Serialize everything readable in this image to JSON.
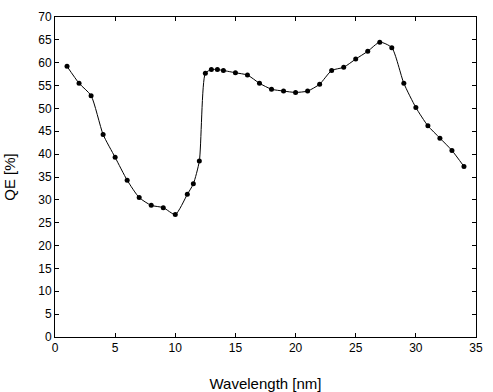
{
  "chart_data": {
    "type": "line",
    "x_label": "Wavelength [nm]",
    "y_label": "QE [%]",
    "x": [
      1,
      2,
      3,
      4,
      5,
      6,
      7,
      8,
      9,
      10,
      11,
      11.5,
      12,
      12.5,
      13,
      13.5,
      14,
      15,
      16,
      17,
      18,
      19,
      20,
      21,
      22,
      23,
      24,
      25,
      26,
      27,
      28,
      29,
      30,
      31,
      32,
      33,
      34
    ],
    "values": [
      59.2,
      55.5,
      52.8,
      44.3,
      39.3,
      34.3,
      30.5,
      28.8,
      28.3,
      26.8,
      31.2,
      33.5,
      38.5,
      57.7,
      58.5,
      58.5,
      58.3,
      57.8,
      57.3,
      55.5,
      54.2,
      53.8,
      53.5,
      53.8,
      55.3,
      58.3,
      59.0,
      60.8,
      62.5,
      64.5,
      63.3,
      55.5,
      50.2,
      46.2,
      43.5,
      40.8,
      37.3
    ],
    "color": "#000000",
    "marker": "circle",
    "line_style": "solid",
    "xlim": [
      0,
      35
    ],
    "xticks": [
      0,
      5,
      10,
      15,
      20,
      25,
      30,
      35
    ],
    "ylim": [
      0,
      70
    ],
    "yticks": [
      0,
      5,
      10,
      15,
      20,
      25,
      30,
      35,
      40,
      45,
      50,
      55,
      60,
      65,
      70
    ],
    "grid": false
  }
}
